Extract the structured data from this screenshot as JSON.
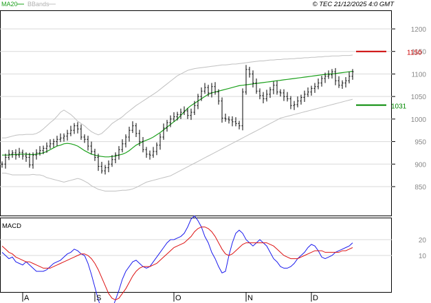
{
  "header": {
    "legend": [
      {
        "label": "MA20",
        "color": "#1aa01a",
        "line_color": "#1aa01a"
      },
      {
        "label": "BBands",
        "color": "#b0b0b0",
        "line_color": "#c0c0c0"
      }
    ],
    "copyright": "© TEC 21/12/2025 4:0 GMT"
  },
  "macd_panel": {
    "label": "MACD"
  },
  "markers": {
    "upper": {
      "label": "1150",
      "value": 1150,
      "color": "#cc0000"
    },
    "lower": {
      "label": "1031",
      "value": 1031,
      "color": "#008800"
    }
  },
  "colors": {
    "price_bar": "#000000",
    "ma": "#1aa01a",
    "bband": "#c0c0c0",
    "macd": "#1a1aee",
    "signal": "#dd1111",
    "grid": "#d9d9d9",
    "frame": "#000000"
  },
  "chart_data": [
    {
      "type": "line",
      "panel": "price",
      "price_scale": "right",
      "ylim": [
        785,
        1245
      ],
      "yticks": [
        850,
        900,
        950,
        1000,
        1050,
        1100,
        1150,
        1200
      ],
      "ytick_labels": [
        "850",
        "900",
        "950",
        "1000",
        "1050",
        "1100",
        "1150",
        "1200"
      ],
      "x_month_labels": [
        {
          "label": "A",
          "index": 6
        },
        {
          "label": "S",
          "index": 27
        },
        {
          "label": "O",
          "index": 50
        },
        {
          "label": "N",
          "index": 71
        },
        {
          "label": "D",
          "index": 90
        }
      ],
      "x_count": 103,
      "ohlc_close": [
        900,
        915,
        922,
        925,
        920,
        926,
        918,
        915,
        898,
        920,
        925,
        930,
        935,
        940,
        945,
        950,
        955,
        958,
        962,
        968,
        975,
        985,
        978,
        960,
        955,
        940,
        928,
        915,
        895,
        885,
        892,
        900,
        910,
        920,
        932,
        945,
        960,
        975,
        985,
        968,
        950,
        932,
        922,
        920,
        928,
        942,
        960,
        980,
        992,
        1000,
        1005,
        1010,
        1015,
        1018,
        1008,
        1015,
        1030,
        1050,
        1062,
        1070,
        1058,
        1072,
        1060,
        1040,
        1002,
        1000,
        998,
        994,
        990,
        985,
        1060,
        1110,
        1100,
        1080,
        1062,
        1052,
        1045,
        1055,
        1065,
        1075,
        1060,
        1058,
        1050,
        1045,
        1030,
        1032,
        1040,
        1048,
        1055,
        1060,
        1068,
        1072,
        1080,
        1090,
        1095,
        1098,
        1105,
        1085,
        1075,
        1080,
        1085,
        1095,
        1105
      ],
      "series": [
        {
          "name": "MA20",
          "values": [
            920,
            920,
            920,
            921,
            921,
            922,
            922,
            922,
            921,
            921,
            922,
            923,
            925,
            928,
            932,
            936,
            940,
            942,
            945,
            946,
            945,
            943,
            940,
            935,
            930,
            926,
            922,
            920,
            918,
            917,
            916,
            916,
            917,
            918,
            920,
            922,
            925,
            930,
            936,
            942,
            946,
            950,
            953,
            956,
            960,
            965,
            970,
            976,
            982,
            988,
            994,
            1000,
            1008,
            1016,
            1024,
            1030,
            1035,
            1040,
            1045,
            1050,
            1055,
            1058,
            1060,
            1062,
            1064,
            1066,
            1068,
            1070,
            1072,
            1074,
            1075,
            1076,
            1077,
            1078,
            1079,
            1080,
            1081,
            1082,
            1083,
            1084,
            1085,
            1086,
            1087,
            1088,
            1089,
            1090,
            1091,
            1092,
            1093,
            1094,
            1095,
            1096,
            1097,
            1098,
            1099,
            1100,
            1100,
            1101,
            1102,
            1103,
            1104,
            1105,
            1106
          ]
        }
      ],
      "bbands": {
        "upper": [
          958,
          958,
          960,
          962,
          964,
          965,
          965,
          966,
          966,
          966,
          968,
          972,
          978,
          985,
          992,
          998,
          1006,
          1015,
          1020,
          1015,
          1010,
          1003,
          995,
          990,
          985,
          978,
          972,
          968,
          965,
          968,
          975,
          982,
          990,
          995,
          1000,
          1005,
          1012,
          1018,
          1024,
          1030,
          1035,
          1040,
          1045,
          1050,
          1055,
          1060,
          1066,
          1072,
          1078,
          1084,
          1090,
          1096,
          1100,
          1104,
          1108,
          1110,
          1112,
          1113,
          1114,
          1115,
          1116,
          1117,
          1118,
          1119,
          1120,
          1120,
          1121,
          1122,
          1122,
          1123,
          1124,
          1125,
          1126,
          1127,
          1128,
          1129,
          1129,
          1130,
          1131,
          1131,
          1132,
          1132,
          1133,
          1133,
          1134,
          1134,
          1135,
          1135,
          1136,
          1136,
          1137,
          1137,
          1138,
          1138,
          1139,
          1139,
          1140,
          1140,
          1140,
          1141,
          1141,
          1141,
          1142
        ],
        "lower": [
          880,
          880,
          878,
          876,
          876,
          876,
          876,
          876,
          876,
          877,
          876,
          876,
          874,
          870,
          868,
          866,
          864,
          862,
          860,
          862,
          864,
          866,
          868,
          866,
          862,
          858,
          852,
          848,
          844,
          842,
          840,
          840,
          840,
          840,
          841,
          842,
          842,
          843,
          845,
          848,
          852,
          856,
          860,
          862,
          864,
          866,
          868,
          870,
          872,
          874,
          878,
          882,
          886,
          890,
          894,
          898,
          902,
          906,
          910,
          914,
          918,
          922,
          926,
          930,
          934,
          938,
          942,
          946,
          950,
          954,
          958,
          962,
          966,
          970,
          974,
          978,
          982,
          986,
          990,
          994,
          998,
          1002,
          1004,
          1006,
          1008,
          1010,
          1012,
          1014,
          1016,
          1018,
          1020,
          1022,
          1024,
          1026,
          1028,
          1030,
          1032,
          1034,
          1036,
          1038,
          1040,
          1042,
          1044
        ]
      }
    },
    {
      "type": "line",
      "panel": "macd",
      "ylim": [
        -30,
        40
      ],
      "yticks": [
        10,
        20
      ],
      "ytick_labels": [
        "10",
        "20"
      ],
      "series": [
        {
          "name": "MACD",
          "values": [
            12,
            10,
            8,
            9,
            6,
            5,
            4,
            6,
            4,
            2,
            0,
            0,
            0,
            1,
            3,
            5,
            6,
            7,
            9,
            11,
            12,
            14,
            13,
            11,
            10,
            5,
            -2,
            -10,
            -18,
            -24,
            -26,
            -28,
            -24,
            -18,
            -12,
            -5,
            0,
            3,
            6,
            7,
            5,
            3,
            2,
            3,
            6,
            9,
            12,
            15,
            18,
            20,
            20,
            21,
            22,
            24,
            28,
            33,
            35,
            32,
            28,
            22,
            18,
            12,
            8,
            3,
            -1,
            0,
            10,
            18,
            24,
            26,
            24,
            20,
            18,
            16,
            18,
            20,
            18,
            16,
            12,
            8,
            6,
            3,
            2,
            2,
            3,
            5,
            8,
            10,
            12,
            15,
            17,
            16,
            13,
            9,
            8,
            9,
            10,
            12,
            13,
            14,
            15,
            16,
            18
          ]
        },
        {
          "name": "Signal",
          "values": [
            16,
            14,
            12,
            11,
            9,
            8,
            7,
            6,
            6,
            5,
            4,
            3,
            2,
            2,
            2,
            3,
            4,
            5,
            6,
            7,
            8,
            9,
            10,
            11,
            11,
            10,
            8,
            5,
            1,
            -4,
            -9,
            -14,
            -17,
            -18,
            -17,
            -14,
            -11,
            -7,
            -3,
            0,
            2,
            3,
            3,
            3,
            4,
            5,
            7,
            9,
            11,
            13,
            15,
            16,
            17,
            18,
            20,
            22,
            25,
            27,
            28,
            28,
            27,
            25,
            22,
            18,
            14,
            11,
            10,
            11,
            13,
            15,
            17,
            18,
            18,
            18,
            18,
            18,
            18,
            18,
            17,
            16,
            14,
            12,
            10,
            9,
            8,
            8,
            8,
            9,
            10,
            11,
            12,
            13,
            13,
            13,
            12,
            12,
            12,
            12,
            12,
            13,
            13,
            14,
            15
          ]
        }
      ]
    }
  ]
}
